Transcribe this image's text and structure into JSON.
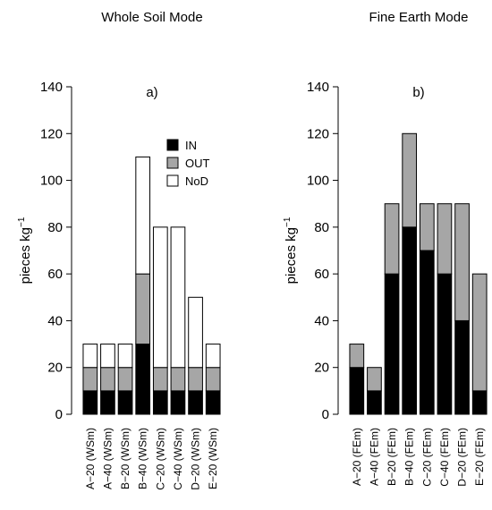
{
  "chart_data": [
    {
      "type": "bar",
      "stacked": true,
      "title": "Whole Soil Mode",
      "panel_label": "a)",
      "ylabel": "pieces kg",
      "ylabel_sup": "−1",
      "ylim": [
        0,
        140
      ],
      "yticks": [
        "0",
        "20",
        "40",
        "60",
        "80",
        "100",
        "120",
        "140"
      ],
      "categories": [
        "A−20 (WSm)",
        "A−40 (WSm)",
        "B−20 (WSm)",
        "B−40 (WSm)",
        "C−20 (WSm)",
        "C−40 (WSm)",
        "D−20 (WSm)",
        "E−20 (WSm)"
      ],
      "series": [
        {
          "name": "IN",
          "color": "#000000",
          "values": [
            10,
            10,
            10,
            30,
            10,
            10,
            10,
            10
          ]
        },
        {
          "name": "OUT",
          "color": "#a6a6a6",
          "values": [
            10,
            10,
            10,
            30,
            10,
            10,
            10,
            10
          ]
        },
        {
          "name": "NoD",
          "color": "#ffffff",
          "values": [
            10,
            10,
            10,
            50,
            60,
            60,
            30,
            10
          ]
        }
      ],
      "legend": {
        "position": "top-right"
      }
    },
    {
      "type": "bar",
      "stacked": true,
      "title": "Fine Earth Mode",
      "panel_label": "b)",
      "ylabel": "pieces kg",
      "ylabel_sup": "−1",
      "ylim": [
        0,
        140
      ],
      "yticks": [
        "0",
        "20",
        "40",
        "60",
        "80",
        "100",
        "120",
        "140"
      ],
      "categories": [
        "A−20 (FEm)",
        "A−40 (FEm)",
        "B−20 (FEm)",
        "B−40 (FEm)",
        "C−20 (FEm)",
        "C−40 (FEm)",
        "D−20 (FEm)",
        "E−20 (FEm)"
      ],
      "series": [
        {
          "name": "IN",
          "color": "#000000",
          "values": [
            20,
            10,
            60,
            80,
            70,
            60,
            40,
            10
          ]
        },
        {
          "name": "OUT",
          "color": "#a6a6a6",
          "values": [
            10,
            10,
            30,
            40,
            20,
            30,
            50,
            50
          ]
        }
      ]
    }
  ]
}
